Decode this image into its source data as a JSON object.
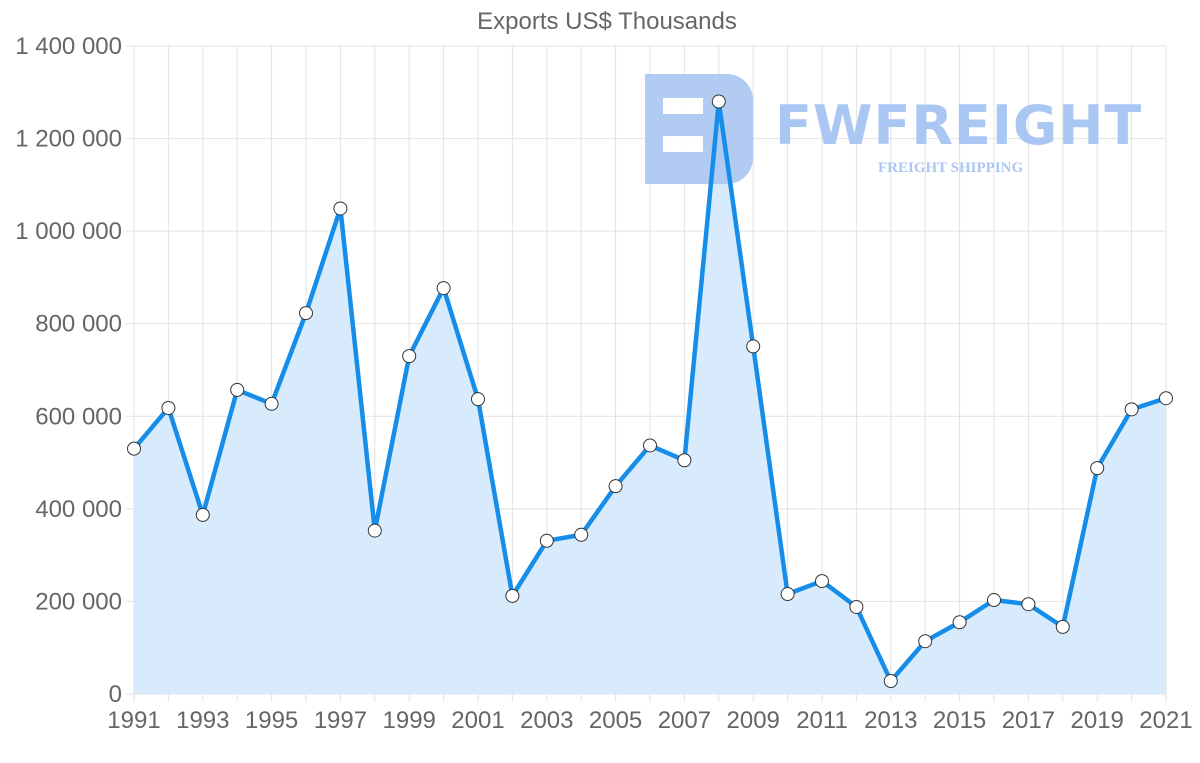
{
  "chart_data": {
    "type": "line",
    "title": "Exports US$ Thousands",
    "xlabel": "",
    "ylabel": "",
    "x": [
      1991,
      1992,
      1993,
      1994,
      1995,
      1996,
      1997,
      1998,
      1999,
      2000,
      2001,
      2002,
      2003,
      2004,
      2005,
      2006,
      2007,
      2008,
      2009,
      2010,
      2011,
      2012,
      2013,
      2014,
      2015,
      2016,
      2017,
      2018,
      2019,
      2020,
      2021
    ],
    "series": [
      {
        "name": "Exports US$ Thousands",
        "values": [
          530000,
          618000,
          387000,
          657000,
          627000,
          823000,
          1049000,
          353000,
          730000,
          877000,
          637000,
          212000,
          331000,
          344000,
          449000,
          537000,
          505000,
          1280000,
          751000,
          216000,
          244000,
          188000,
          28000,
          114000,
          155000,
          203000,
          194000,
          145000,
          488000,
          615000,
          639000
        ],
        "color": "#168ee9",
        "fill": "#d8ebfc"
      }
    ],
    "ylim": [
      0,
      1400000
    ],
    "xlim": [
      1991,
      2021
    ],
    "yticks": [
      0,
      200000,
      400000,
      600000,
      800000,
      1000000,
      1200000,
      1400000
    ],
    "ytick_labels": [
      "0",
      "200 000",
      "400 000",
      "600 000",
      "800 000",
      "1 000 000",
      "1 200 000",
      "1 400 000"
    ],
    "xtick_labels": [
      "1991",
      "1993",
      "1995",
      "1997",
      "1999",
      "2001",
      "2003",
      "2005",
      "2007",
      "2009",
      "2011",
      "2013",
      "2015",
      "2017",
      "2019",
      "2021"
    ],
    "grid": true,
    "legend": "none"
  },
  "watermark": {
    "brand": "FWFREIGHT",
    "tagline": "FREIGHT SHIPPING"
  },
  "colors": {
    "line": "#168ee9",
    "area": "#d8ebfc",
    "grid": "#e2e2e2",
    "axis_text": "#666666",
    "marker_fill": "#ffffff",
    "marker_stroke": "#333333",
    "watermark": "#aac6f2"
  }
}
